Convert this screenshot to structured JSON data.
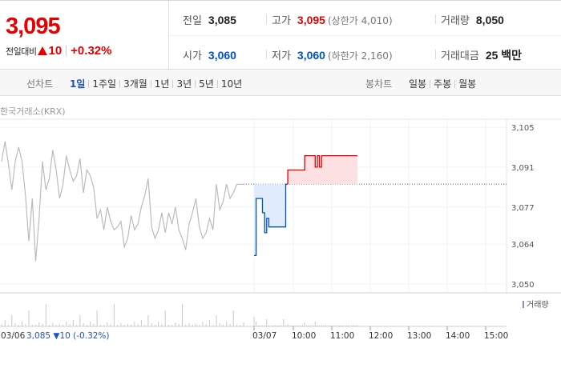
{
  "quote": {
    "current_price": "3,095",
    "change_label": "전일대비",
    "change_value": "10",
    "change_percent": "+0.32%",
    "stats": {
      "prev_close": {
        "label": "전일",
        "value": "3,085"
      },
      "high": {
        "label": "고가",
        "value": "3,095",
        "note": "(상한가 4,010)"
      },
      "volume": {
        "label": "거래량",
        "value": "8,050"
      },
      "open": {
        "label": "시가",
        "value": "3,060"
      },
      "low": {
        "label": "저가",
        "value": "3,060",
        "note": "(하한가 2,160)"
      },
      "trade_value": {
        "label": "거래대금",
        "value": "25 백만"
      }
    }
  },
  "periods": {
    "line_label": "선차트",
    "line_options": [
      "1일",
      "1주일",
      "3개월",
      "1년",
      "3년",
      "5년",
      "10년"
    ],
    "line_selected": "1일",
    "candle_label": "봉차트",
    "candle_options": [
      "일봉",
      "주봉",
      "월봉"
    ]
  },
  "source": "한국거래소(KRX)",
  "prev_day_label": "03/06",
  "prev_day_summary": "3,085 ▼10 (-0.32%)",
  "colors": {
    "up": "#e60000",
    "down": "#0050c8",
    "prev_line": "#bbbbbb",
    "up_fill": "#fde0e2",
    "down_fill": "#e0ebfb",
    "volume": "#c8c8c8"
  },
  "chart_data": {
    "type": "line",
    "ylim": [
      3050,
      3105
    ],
    "y_ticks": [
      "3,105",
      "3,091",
      "3,077",
      "3,064",
      "3,050"
    ],
    "y_tick_values": [
      3105,
      3091,
      3077,
      3064,
      3050
    ],
    "x_tick_labels": [
      "03/06",
      "03/07",
      "10:00",
      "11:00",
      "12:00",
      "13:00",
      "14:00",
      "15:00"
    ],
    "reference_price": 3085,
    "legend": "거래량",
    "series": [
      {
        "values": [
          3093,
          3100,
          3092,
          3083,
          3093,
          3098,
          3093,
          3081,
          3065,
          3080,
          3058,
          3073,
          3093,
          3083,
          3087,
          3097,
          3090,
          3080,
          3085,
          3095,
          3090,
          3086,
          3088,
          3094,
          3082,
          3090,
          3088,
          3084,
          3073,
          3076,
          3069,
          3077,
          3072,
          3069,
          3070,
          3072,
          3063,
          3066,
          3074,
          3069,
          3071,
          3077,
          3081,
          3087,
          3070,
          3066,
          3069,
          3075,
          3068,
          3075,
          3071,
          3077,
          3069,
          3066,
          3062,
          3071,
          3075,
          3080,
          3070,
          3066,
          3068,
          3073,
          3069,
          3085,
          3076,
          3079,
          3085,
          3080,
          3082,
          3085,
          3085,
          3085
        ]
      },
      {
        "values": [
          3060,
          3080,
          3080,
          3080,
          3075,
          3068,
          3073,
          3070,
          3070,
          3070,
          3070,
          3070,
          3070,
          3070,
          3070,
          3085,
          3090,
          3090,
          3090,
          3090,
          3090,
          3090,
          3090,
          3090,
          3095,
          3095,
          3095,
          3095,
          3095,
          3091,
          3095,
          3091,
          3095,
          3095,
          3095,
          3095,
          3095,
          3095,
          3095,
          3095,
          3095,
          3095,
          3095,
          3095,
          3095,
          3095,
          3095,
          3095,
          3095,
          3095
        ]
      }
    ],
    "volume_today": [
      0.4,
      0.2,
      0.05,
      0.05,
      0.05,
      0.05,
      0.3,
      0.05,
      0.05,
      0.05,
      0.05,
      0.05,
      0.05,
      0.05,
      0.3,
      0.05,
      0.1,
      0.05,
      0.05,
      0.05,
      0.05,
      0.05,
      0.05,
      0.05,
      0.15,
      0.05,
      0.05,
      0.05,
      0.05,
      0.2,
      0.05,
      0.05,
      0.05,
      0.05,
      0.05,
      0.05,
      0.05,
      0.05,
      0.05,
      0.05,
      0.05,
      0.05,
      0.05,
      0.05,
      0.05,
      0.05,
      0.05,
      0.05,
      0.05,
      0.05
    ]
  }
}
